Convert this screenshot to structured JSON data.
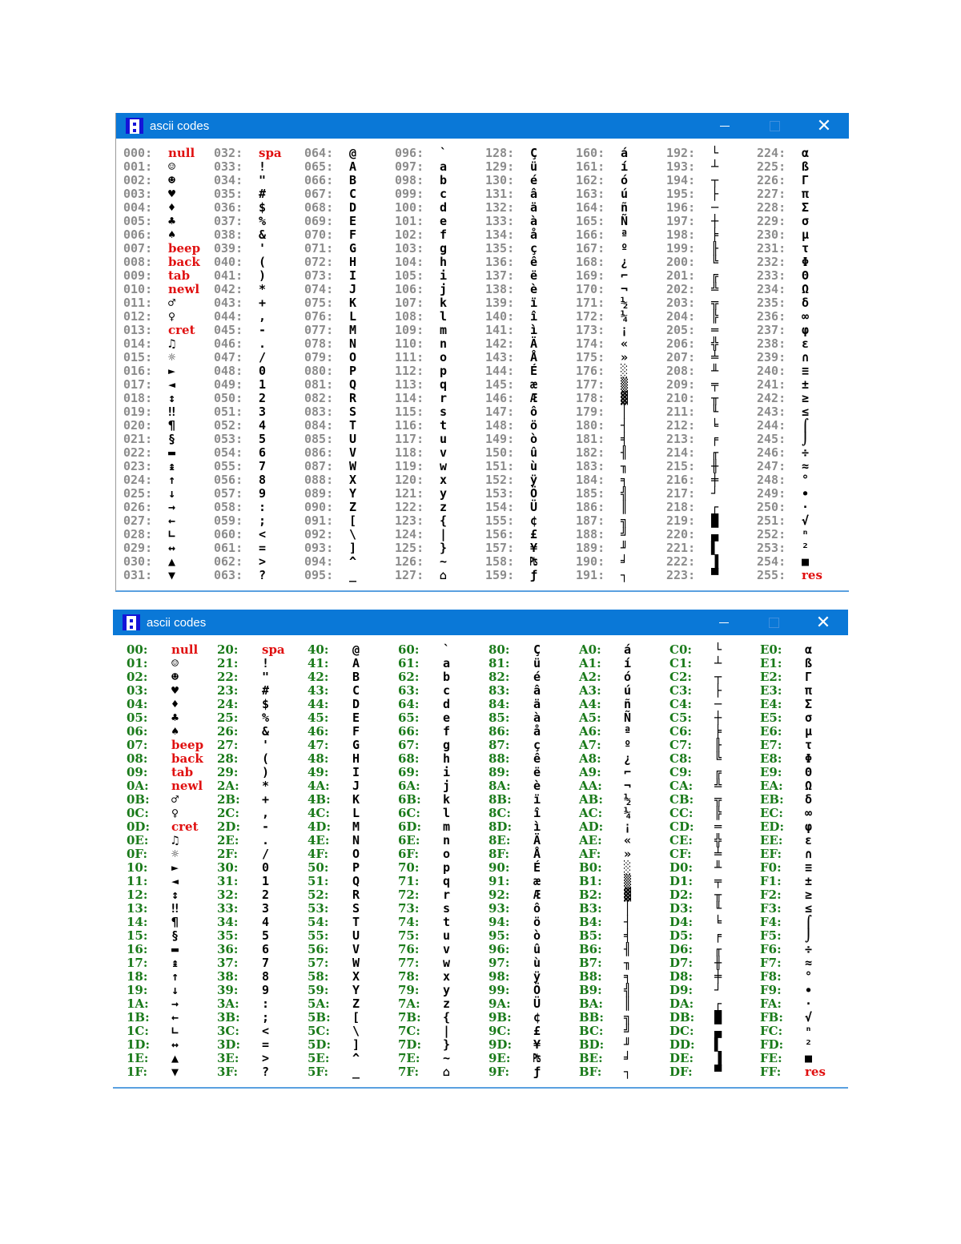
{
  "windows": [
    {
      "title": "ascii codes",
      "label_format": "decimal",
      "label_color": "#8c8c8c",
      "controls": {
        "minimize": "minimize-icon",
        "maximize": "maximize-icon",
        "close": "close-icon"
      }
    },
    {
      "title": "ascii codes",
      "label_format": "hex",
      "label_color": "#1a7a1a",
      "controls": {
        "minimize": "minimize-icon",
        "maximize": "maximize-icon",
        "close": "close-icon"
      }
    }
  ],
  "special_color": "#e01010",
  "titlebar_color": "#0a78d7",
  "glyphs": [
    "null",
    "☺",
    "☻",
    "♥",
    "♦",
    "♣",
    "♠",
    "beep",
    "back",
    "tab",
    "newl",
    "♂",
    "♀",
    "cret",
    "♫",
    "☼",
    "►",
    "◄",
    "↕",
    "‼",
    "¶",
    "§",
    "▬",
    "↨",
    "↑",
    "↓",
    "→",
    "←",
    "∟",
    "↔",
    "▲",
    "▼",
    "spa",
    "!",
    "\"",
    "#",
    "$",
    "%",
    "&",
    "'",
    "(",
    ")",
    "*",
    "+",
    ",",
    "-",
    ".",
    "/",
    "0",
    "1",
    "2",
    "3",
    "4",
    "5",
    "6",
    "7",
    "8",
    "9",
    ":",
    ";",
    "<",
    "=",
    ">",
    "?",
    "@",
    "A",
    "B",
    "C",
    "D",
    "E",
    "F",
    "G",
    "H",
    "I",
    "J",
    "K",
    "L",
    "M",
    "N",
    "O",
    "P",
    "Q",
    "R",
    "S",
    "T",
    "U",
    "V",
    "W",
    "X",
    "Y",
    "Z",
    "[",
    "\\",
    "]",
    "^",
    "_",
    "`",
    "a",
    "b",
    "c",
    "d",
    "e",
    "f",
    "g",
    "h",
    "i",
    "j",
    "k",
    "l",
    "m",
    "n",
    "o",
    "p",
    "q",
    "r",
    "s",
    "t",
    "u",
    "v",
    "w",
    "x",
    "y",
    "z",
    "{",
    "|",
    "}",
    "~",
    "⌂",
    "Ç",
    "ü",
    "é",
    "â",
    "ä",
    "à",
    "å",
    "ç",
    "ê",
    "ë",
    "è",
    "ï",
    "î",
    "ì",
    "Ä",
    "Å",
    "É",
    "æ",
    "Æ",
    "ô",
    "ö",
    "ò",
    "û",
    "ù",
    "ÿ",
    "Ö",
    "Ü",
    "¢",
    "£",
    "¥",
    "₧",
    "ƒ",
    "á",
    "í",
    "ó",
    "ú",
    "ñ",
    "Ñ",
    "ª",
    "º",
    "¿",
    "⌐",
    "¬",
    "½",
    "¼",
    "¡",
    "«",
    "»",
    "░",
    "▒",
    "▓",
    "│",
    "┤",
    "╡",
    "╢",
    "╖",
    "╕",
    "╣",
    "║",
    "╗",
    "╝",
    "╜",
    "╛",
    "┐",
    "└",
    "┴",
    "┬",
    "├",
    "─",
    "┼",
    "╞",
    "╟",
    "╚",
    "╔",
    "╩",
    "╦",
    "╠",
    "═",
    "╬",
    "╧",
    "╨",
    "╤",
    "╥",
    "╙",
    "╘",
    "╒",
    "╓",
    "╫",
    "╪",
    "┘",
    "┌",
    "█",
    "▄",
    "▌",
    "▐",
    "▀",
    "α",
    "ß",
    "Γ",
    "π",
    "Σ",
    "σ",
    "µ",
    "τ",
    "Φ",
    "Θ",
    "Ω",
    "δ",
    "∞",
    "φ",
    "ε",
    "∩",
    "≡",
    "±",
    "≥",
    "≤",
    "⌠",
    "⌡",
    "÷",
    "≈",
    "°",
    "∙",
    "·",
    "√",
    "ⁿ",
    "²",
    "■",
    "res"
  ],
  "special_codes": [
    0,
    7,
    8,
    9,
    10,
    13,
    32,
    255
  ]
}
